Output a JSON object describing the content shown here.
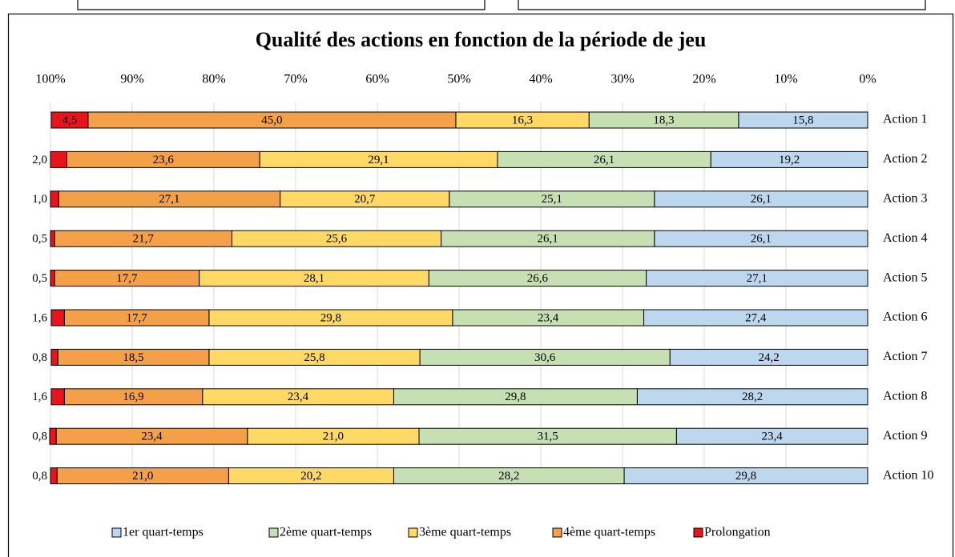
{
  "chart_data": {
    "type": "stacked-bar-horizontal",
    "title": "Qualité des actions en fonction de la période de jeu",
    "categories": [
      "Action 1",
      "Action 2",
      "Action 3",
      "Action 4",
      "Action 5",
      "Action 6",
      "Action 7",
      "Action 8",
      "Action 9",
      "Action 10"
    ],
    "xlim": [
      100,
      0
    ],
    "xticks": [
      {
        "value": 100,
        "label": "100%"
      },
      {
        "value": 90,
        "label": "90%"
      },
      {
        "value": 80,
        "label": "80%"
      },
      {
        "value": 70,
        "label": "70%"
      },
      {
        "value": 60,
        "label": "60%"
      },
      {
        "value": 50,
        "label": "50%"
      },
      {
        "value": 40,
        "label": "40%"
      },
      {
        "value": 30,
        "label": "30%"
      },
      {
        "value": 20,
        "label": "20%"
      },
      {
        "value": 10,
        "label": "10%"
      },
      {
        "value": 0,
        "label": "0%"
      }
    ],
    "grid": true,
    "legend": "bottom",
    "series": [
      {
        "name": "1er quart-temps",
        "color": "#bdd7ee",
        "values": [
          15.8,
          19.2,
          26.1,
          26.1,
          27.1,
          27.4,
          24.2,
          28.2,
          23.4,
          29.8
        ],
        "value_labels": [
          "15,8",
          "19,2",
          "26,1",
          "26,1",
          "27,1",
          "27,4",
          "24,2",
          "28,2",
          "23,4",
          "29,8"
        ]
      },
      {
        "name": "2ème quart-temps",
        "color": "#c6e0b4",
        "values": [
          18.3,
          26.1,
          25.1,
          26.1,
          26.6,
          23.4,
          30.6,
          29.8,
          31.5,
          28.2
        ],
        "value_labels": [
          "18,3",
          "26,1",
          "25,1",
          "26,1",
          "26,6",
          "23,4",
          "30,6",
          "29,8",
          "31,5",
          "28,2"
        ]
      },
      {
        "name": "3ème quart-temps",
        "color": "#ffd966",
        "values": [
          16.3,
          29.1,
          20.7,
          25.6,
          28.1,
          29.8,
          25.8,
          23.4,
          21.0,
          20.2
        ],
        "value_labels": [
          "16,3",
          "29,1",
          "20,7",
          "25,6",
          "28,1",
          "29,8",
          "25,8",
          "23,4",
          "21,0",
          "20,2"
        ]
      },
      {
        "name": "4ème quart-temps",
        "color": "#f4a049",
        "values": [
          45.0,
          23.6,
          27.1,
          21.7,
          17.7,
          17.7,
          18.5,
          16.9,
          23.4,
          21.0
        ],
        "value_labels": [
          "45,0",
          "23,6",
          "27,1",
          "21,7",
          "17,7",
          "17,7",
          "18,5",
          "16,9",
          "23,4",
          "21,0"
        ]
      },
      {
        "name": "Prolongation",
        "color": "#e8141c",
        "values": [
          4.5,
          2.0,
          1.0,
          0.5,
          0.5,
          1.6,
          0.8,
          1.6,
          0.8,
          0.8
        ],
        "value_labels": [
          "4,5",
          "2,0",
          "1,0",
          "0,5",
          "0,5",
          "1,6",
          "0,8",
          "1,6",
          "0,8",
          "0,8"
        ]
      }
    ]
  }
}
